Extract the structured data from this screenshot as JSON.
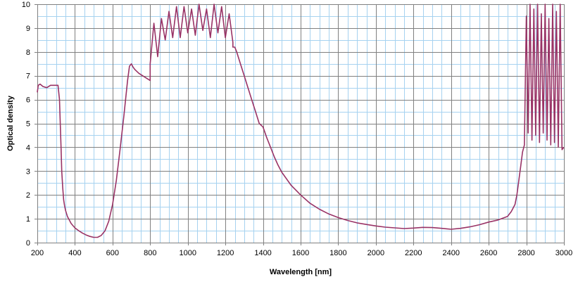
{
  "chart_data": {
    "type": "line",
    "title": "",
    "xlabel": "Wavelength [nm]",
    "ylabel": "Optical density",
    "xlim": [
      200,
      3000
    ],
    "ylim": [
      0,
      10
    ],
    "x_ticks": [
      200,
      400,
      600,
      800,
      1000,
      1200,
      1400,
      1600,
      1800,
      2000,
      2200,
      2400,
      2600,
      2800,
      3000
    ],
    "y_ticks": [
      0,
      1,
      2,
      3,
      4,
      5,
      6,
      7,
      8,
      9,
      10
    ],
    "x_minor_step": 50,
    "y_minor_step": 0.5,
    "grid": true,
    "legend": "none",
    "colors": {
      "line": "#993366",
      "major_grid": "#808080",
      "minor_grid": "#a6d2f0",
      "axis": "#808080"
    },
    "series": [
      {
        "x": [
          200,
          205,
          215,
          230,
          250,
          270,
          290,
          310,
          318,
          322,
          326,
          330,
          335,
          340,
          345,
          350,
          360,
          370,
          380,
          400,
          420,
          440,
          460,
          480,
          500,
          520,
          540,
          560,
          580,
          600,
          620,
          640,
          660,
          680,
          690,
          700,
          710,
          720,
          740,
          760,
          780,
          800,
          800,
          820,
          840,
          860,
          880,
          900,
          920,
          940,
          960,
          980,
          1000,
          1020,
          1040,
          1060,
          1080,
          1100,
          1120,
          1140,
          1160,
          1180,
          1200,
          1220,
          1240,
          1240,
          1250,
          1260,
          1280,
          1300,
          1320,
          1340,
          1360,
          1380,
          1400,
          1420,
          1440,
          1460,
          1480,
          1500,
          1550,
          1600,
          1650,
          1700,
          1750,
          1800,
          1850,
          1900,
          1950,
          2000,
          2050,
          2100,
          2150,
          2200,
          2250,
          2300,
          2350,
          2400,
          2450,
          2500,
          2550,
          2600,
          2650,
          2700,
          2720,
          2740,
          2750,
          2760,
          2770,
          2780,
          2790,
          2790,
          2800,
          2810,
          2820,
          2830,
          2840,
          2850,
          2860,
          2870,
          2880,
          2890,
          2900,
          2910,
          2920,
          2930,
          2940,
          2950,
          2960,
          2970,
          2980,
          2990,
          3000
        ],
        "y": [
          6.3,
          6.6,
          6.65,
          6.55,
          6.5,
          6.6,
          6.6,
          6.6,
          6.0,
          5.0,
          4.0,
          3.0,
          2.3,
          1.8,
          1.55,
          1.35,
          1.1,
          0.95,
          0.8,
          0.62,
          0.5,
          0.4,
          0.32,
          0.26,
          0.22,
          0.22,
          0.3,
          0.5,
          0.9,
          1.6,
          2.6,
          3.9,
          5.3,
          6.8,
          7.4,
          7.5,
          7.35,
          7.25,
          7.1,
          7.0,
          6.9,
          6.8,
          7.5,
          9.2,
          7.8,
          9.4,
          8.5,
          9.7,
          8.6,
          9.9,
          8.6,
          9.9,
          8.8,
          9.8,
          8.7,
          10.0,
          8.9,
          9.8,
          8.6,
          10.0,
          8.8,
          9.9,
          8.6,
          9.6,
          8.4,
          8.2,
          8.2,
          8.0,
          7.5,
          7.0,
          6.5,
          6.0,
          5.5,
          5.0,
          4.85,
          4.4,
          4.0,
          3.6,
          3.25,
          2.95,
          2.4,
          2.0,
          1.65,
          1.4,
          1.2,
          1.05,
          0.93,
          0.83,
          0.76,
          0.7,
          0.65,
          0.62,
          0.59,
          0.61,
          0.64,
          0.63,
          0.6,
          0.56,
          0.6,
          0.66,
          0.75,
          0.86,
          0.95,
          1.1,
          1.3,
          1.6,
          2.0,
          2.6,
          3.2,
          3.8,
          4.1,
          4.2,
          9.5,
          4.6,
          10.0,
          4.3,
          9.8,
          4.5,
          10.0,
          4.2,
          9.6,
          4.6,
          10.0,
          4.3,
          9.4,
          4.1,
          10.0,
          4.2,
          9.7,
          4.0,
          10.0,
          3.9,
          4.0
        ]
      }
    ]
  }
}
